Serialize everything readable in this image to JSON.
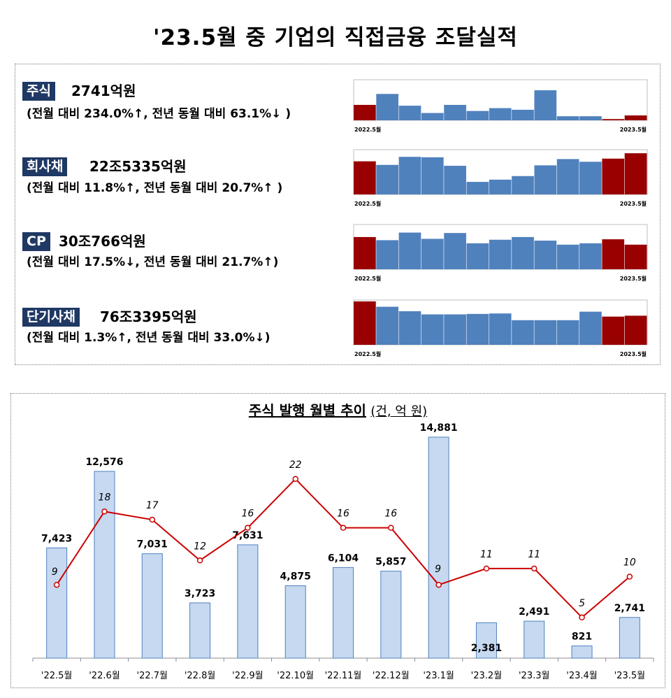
{
  "title": "'23.5월 중 기업의 직접금융 조달실적",
  "summary": [
    {
      "label": "주식",
      "amount": "2741억원",
      "desc": "(전월 대비 234.0%↑, 전년 동월 대비 63.1%↓ )"
    },
    {
      "label": "회사채",
      "amount": "22조5335억원",
      "desc": "(전월 대비 11.8%↑, 전년 동월 대비 20.7%↑ )"
    },
    {
      "label": "CP",
      "amount": "30조766억원",
      "desc": "(전월 대비 17.5%↓, 전년 동월 대비 21.7%↑)"
    },
    {
      "label": "단기사채",
      "amount": "76조3395억원",
      "desc": "(전월 대비 1.3%↑, 전년 동월 대비 33.0%↓)"
    }
  ],
  "colors": {
    "highlight": "#990000",
    "normal": "#4f81bd",
    "bar_fill": "#c6d9f1",
    "bar_stroke": "#4f81bd",
    "line": "#cc0000",
    "label_bg": "#1f3864"
  },
  "chart_data": [
    {
      "type": "bar",
      "categories": [
        "2022.5월",
        "",
        "",
        "",
        "",
        "",
        "",
        "",
        "",
        "",
        "",
        "",
        "2023.5월"
      ],
      "values": [
        0.38,
        0.65,
        0.36,
        0.18,
        0.38,
        0.23,
        0.3,
        0.26,
        0.74,
        0.1,
        0.1,
        0.03,
        0.12
      ],
      "highlight": [
        0,
        11,
        12
      ],
      "ylim": [
        0,
        1
      ]
    },
    {
      "type": "bar",
      "categories": [
        "2022.5월",
        "",
        "",
        "",
        "",
        "",
        "",
        "",
        "",
        "",
        "",
        "",
        "2023.5월"
      ],
      "values": [
        0.74,
        0.66,
        0.84,
        0.83,
        0.64,
        0.28,
        0.33,
        0.41,
        0.65,
        0.79,
        0.73,
        0.8,
        0.92
      ],
      "highlight": [
        0,
        11,
        12
      ],
      "ylim": [
        0,
        1
      ]
    },
    {
      "type": "bar",
      "categories": [
        "2022.5월",
        "",
        "",
        "",
        "",
        "",
        "",
        "",
        "",
        "",
        "",
        "",
        "2023.5월"
      ],
      "values": [
        0.72,
        0.65,
        0.82,
        0.68,
        0.81,
        0.58,
        0.66,
        0.72,
        0.64,
        0.55,
        0.58,
        0.67,
        0.55
      ],
      "highlight": [
        0,
        11,
        12
      ],
      "ylim": [
        0,
        1
      ]
    },
    {
      "type": "bar",
      "categories": [
        "2022.5월",
        "",
        "",
        "",
        "",
        "",
        "",
        "",
        "",
        "",
        "",
        "",
        "2023.5월"
      ],
      "values": [
        0.97,
        0.85,
        0.75,
        0.68,
        0.68,
        0.69,
        0.7,
        0.55,
        0.55,
        0.55,
        0.74,
        0.63,
        0.65
      ],
      "highlight": [
        0,
        11,
        12
      ],
      "ylim": [
        0,
        1
      ]
    },
    {
      "type": "bar",
      "title": "주식 발행 월별 추이",
      "unit": "(건, 억 원)",
      "categories": [
        "'22.5월",
        "'22.6월",
        "'22.7월",
        "'22.8월",
        "'22.9월",
        "'22.10월",
        "'22.11월",
        "'22.12월",
        "'23.1월",
        "'23.2월",
        "'23.3월",
        "'23.4월",
        "'23.5월"
      ],
      "series": [
        {
          "type": "bar",
          "values": [
            7423,
            12576,
            7031,
            3723,
            7631,
            4875,
            6104,
            5857,
            14881,
            2381,
            2491,
            821,
            2741
          ],
          "labels": [
            "7,423",
            "12,576",
            "7,031",
            "3,723",
            "7,631",
            "4,875",
            "6,104",
            "5,857",
            "14,881",
            "2,381",
            "2,491",
            "821",
            "2,741"
          ]
        },
        {
          "type": "line",
          "values": [
            9,
            18,
            17,
            12,
            16,
            22,
            16,
            16,
            9,
            11,
            11,
            5,
            10
          ],
          "labels": [
            "9",
            "18",
            "17",
            "12",
            "16",
            "22",
            "16",
            "16",
            "9",
            "11",
            "11",
            "5",
            "10"
          ]
        }
      ],
      "ylim": [
        0,
        17000
      ],
      "y2lim": [
        0,
        31
      ],
      "grid": false
    }
  ]
}
